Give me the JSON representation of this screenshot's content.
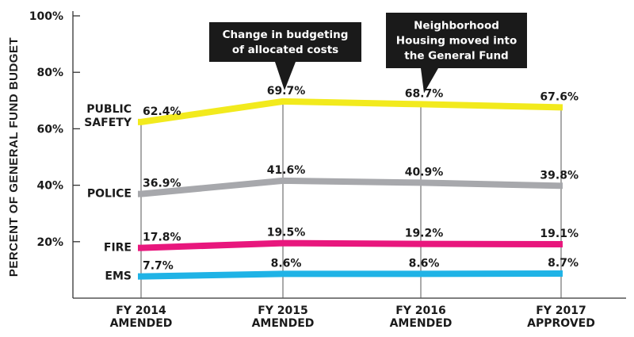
{
  "chart_data": {
    "type": "line",
    "ylabel": "PERCENT OF GENERAL FUND BUDGET",
    "xlabel": "",
    "ylim": [
      0,
      100
    ],
    "yticks": [
      20,
      40,
      60,
      80,
      100
    ],
    "ytick_labels": [
      "20%",
      "40%",
      "60%",
      "80%",
      "100%"
    ],
    "categories": [
      [
        "FY 2014",
        "AMENDED"
      ],
      [
        "FY 2015",
        "AMENDED"
      ],
      [
        "FY 2016",
        "AMENDED"
      ],
      [
        "FY 2017",
        "APPROVED"
      ]
    ],
    "series": [
      {
        "name": [
          "PUBLIC",
          "SAFETY"
        ],
        "values": [
          62.4,
          69.7,
          68.7,
          67.6
        ],
        "labels": [
          "62.4%",
          "69.7%",
          "68.7%",
          "67.6%"
        ],
        "color": "#f2ea1d"
      },
      {
        "name": [
          "POLICE"
        ],
        "values": [
          36.9,
          41.6,
          40.9,
          39.8
        ],
        "labels": [
          "36.9%",
          "41.6%",
          "40.9%",
          "39.8%"
        ],
        "color": "#a7a8ac"
      },
      {
        "name": [
          "FIRE"
        ],
        "values": [
          17.8,
          19.5,
          19.2,
          19.1
        ],
        "labels": [
          "17.8%",
          "19.5%",
          "19.2%",
          "19.1%"
        ],
        "color": "#e8177d"
      },
      {
        "name": [
          "EMS"
        ],
        "values": [
          7.7,
          8.6,
          8.6,
          8.7
        ],
        "labels": [
          "7.7%",
          "8.6%",
          "8.6%",
          "8.7%"
        ],
        "color": "#1fb3e6"
      }
    ],
    "annotations": [
      {
        "text": [
          "Change in budgeting",
          "of allocated costs"
        ],
        "category_index": 1,
        "series_index": 0
      },
      {
        "text": [
          "Neighborhood",
          "Housing moved into",
          "the General Fund"
        ],
        "category_index": 2,
        "series_index": 0
      }
    ],
    "grid": false,
    "vertical_guides": true
  }
}
